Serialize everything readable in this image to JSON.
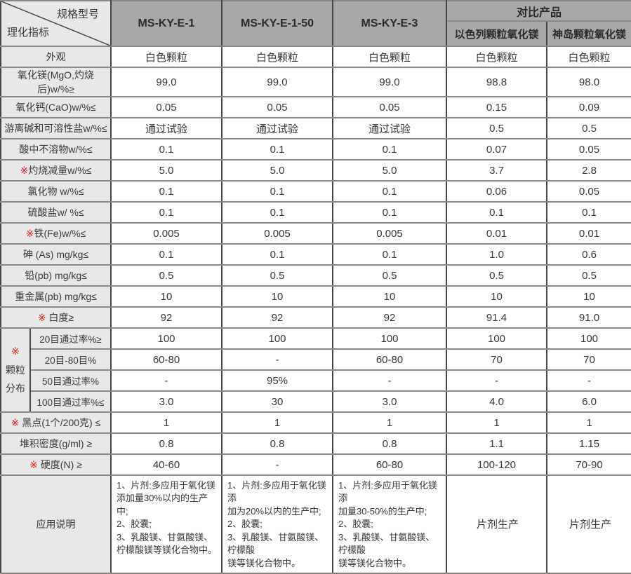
{
  "table": {
    "corner": {
      "top_right_label": "规格型号",
      "bottom_left_label": "理化指标"
    },
    "product_columns": [
      "MS-KY-E-1",
      "MS-KY-E-1-50",
      "MS-KY-E-3"
    ],
    "comparison": {
      "header": "对比产品",
      "columns": [
        "以色列颗粒氧化镁",
        "神岛颗粒氧化镁"
      ]
    },
    "group": {
      "marker": "※",
      "name_lines": [
        "颗粒",
        "分布"
      ],
      "span": 4
    },
    "rows": [
      {
        "marker": "",
        "label": "外观",
        "values": [
          "白色颗粒",
          "白色颗粒",
          "白色颗粒",
          "白色颗粒",
          "白色颗粒"
        ]
      },
      {
        "marker": "",
        "label": "氧化镁(MgO,灼烧后)w/%≥",
        "values": [
          "99.0",
          "99.0",
          "99.0",
          "98.8",
          "98.0"
        ]
      },
      {
        "marker": "",
        "label": "氧化钙(CaO)w/%≤",
        "values": [
          "0.05",
          "0.05",
          "0.05",
          "0.15",
          "0.09"
        ]
      },
      {
        "marker": "",
        "label": "游离碱和可溶性盐w/%≤",
        "values": [
          "通过试验",
          "通过试验",
          "通过试验",
          "0.5",
          "0.5"
        ]
      },
      {
        "marker": "",
        "label": "酸中不溶物w/%≤",
        "values": [
          "0.1",
          "0.1",
          "0.1",
          "0.07",
          "0.05"
        ]
      },
      {
        "marker": "※",
        "label": "灼烧减量w/%≤",
        "values": [
          "5.0",
          "5.0",
          "5.0",
          "3.7",
          "2.8"
        ]
      },
      {
        "marker": "",
        "label": "氯化物 w/%≤",
        "values": [
          "0.1",
          "0.1",
          "0.1",
          "0.06",
          "0.05"
        ]
      },
      {
        "marker": "",
        "label": "硫酸盐w/ %≤",
        "values": [
          "0.1",
          "0.1",
          "0.1",
          "0.1",
          "0.1"
        ]
      },
      {
        "marker": "※",
        "label": "铁(Fe)w/%≤",
        "values": [
          "0.005",
          "0.005",
          "0.005",
          "0.01",
          "0.01"
        ]
      },
      {
        "marker": "",
        "label": "砷 (As) mg/kg≤",
        "values": [
          "0.1",
          "0.1",
          "0.1",
          "1.0",
          "0.6"
        ]
      },
      {
        "marker": "",
        "label": "铅(pb) mg/kg≤",
        "values": [
          "0.5",
          "0.5",
          "0.5",
          "0.5",
          "0.5"
        ]
      },
      {
        "marker": "",
        "label": "重金属(pb) mg/kg≤",
        "values": [
          "10",
          "10",
          "10",
          "10",
          "10"
        ]
      },
      {
        "marker": "※ ",
        "label": "白度≥",
        "values": [
          "92",
          "92",
          "92",
          "91.4",
          "91.0"
        ]
      },
      {
        "sub": true,
        "group_start": true,
        "marker": "",
        "label": "20目通过率%≥",
        "values": [
          "100",
          "100",
          "100",
          "100",
          "100"
        ]
      },
      {
        "sub": true,
        "marker": "",
        "label": "20目-80目%",
        "values": [
          "60-80",
          "-",
          "60-80",
          "70",
          "70"
        ]
      },
      {
        "sub": true,
        "marker": "",
        "label": "50目通过率%",
        "values": [
          "-",
          "95%",
          "-",
          "-",
          "-"
        ]
      },
      {
        "sub": true,
        "marker": "",
        "label": "100目通过率%≤",
        "values": [
          "3.0",
          "30",
          "3.0",
          "4.0",
          "6.0"
        ]
      },
      {
        "marker": "※ ",
        "label": "黑点(1个/200克) ≤",
        "values": [
          "1",
          "1",
          "1",
          "1",
          "1"
        ]
      },
      {
        "marker": "",
        "label": "堆积密度(g/ml) ≥",
        "values": [
          "0.8",
          "0.8",
          "0.8",
          "1.1",
          "1.15"
        ]
      },
      {
        "marker": "※ ",
        "label": "硬度(N) ≥",
        "values": [
          "40-60",
          "-",
          "60-80",
          "100-120",
          "70-90"
        ]
      }
    ],
    "application": {
      "label": "应用说明",
      "values": [
        "1、片剂:多应用于氧化镁\n添加量30%以内的生产中;\n2、胶囊;\n3、乳酸镁、甘氨酸镁、\n柠檬酸镁等镁化合物中。",
        "1、片剂:多应用于氧化镁添\n加为20%以内的生产中;\n2、胶囊;\n3、乳酸镁、甘氨酸镁、柠檬酸\n镁等镁化合物中。",
        "1、片剂:多应用于氧化镁添\n加量30-50%的生产中;\n2、胶囊;\n3、乳酸镁、甘氨酸镁、柠檬酸\n镁等镁化合物中。",
        "片剂生产",
        "片剂生产"
      ]
    }
  },
  "colors": {
    "header_bg": "#a8a8a8",
    "label_bg": "#e9e8e8",
    "cell_bg": "#ffffff",
    "text": "#3a3736",
    "accent_red": "#e2231a",
    "border_vertical": "#4b4543",
    "border_horizontal": "#8d8884"
  }
}
